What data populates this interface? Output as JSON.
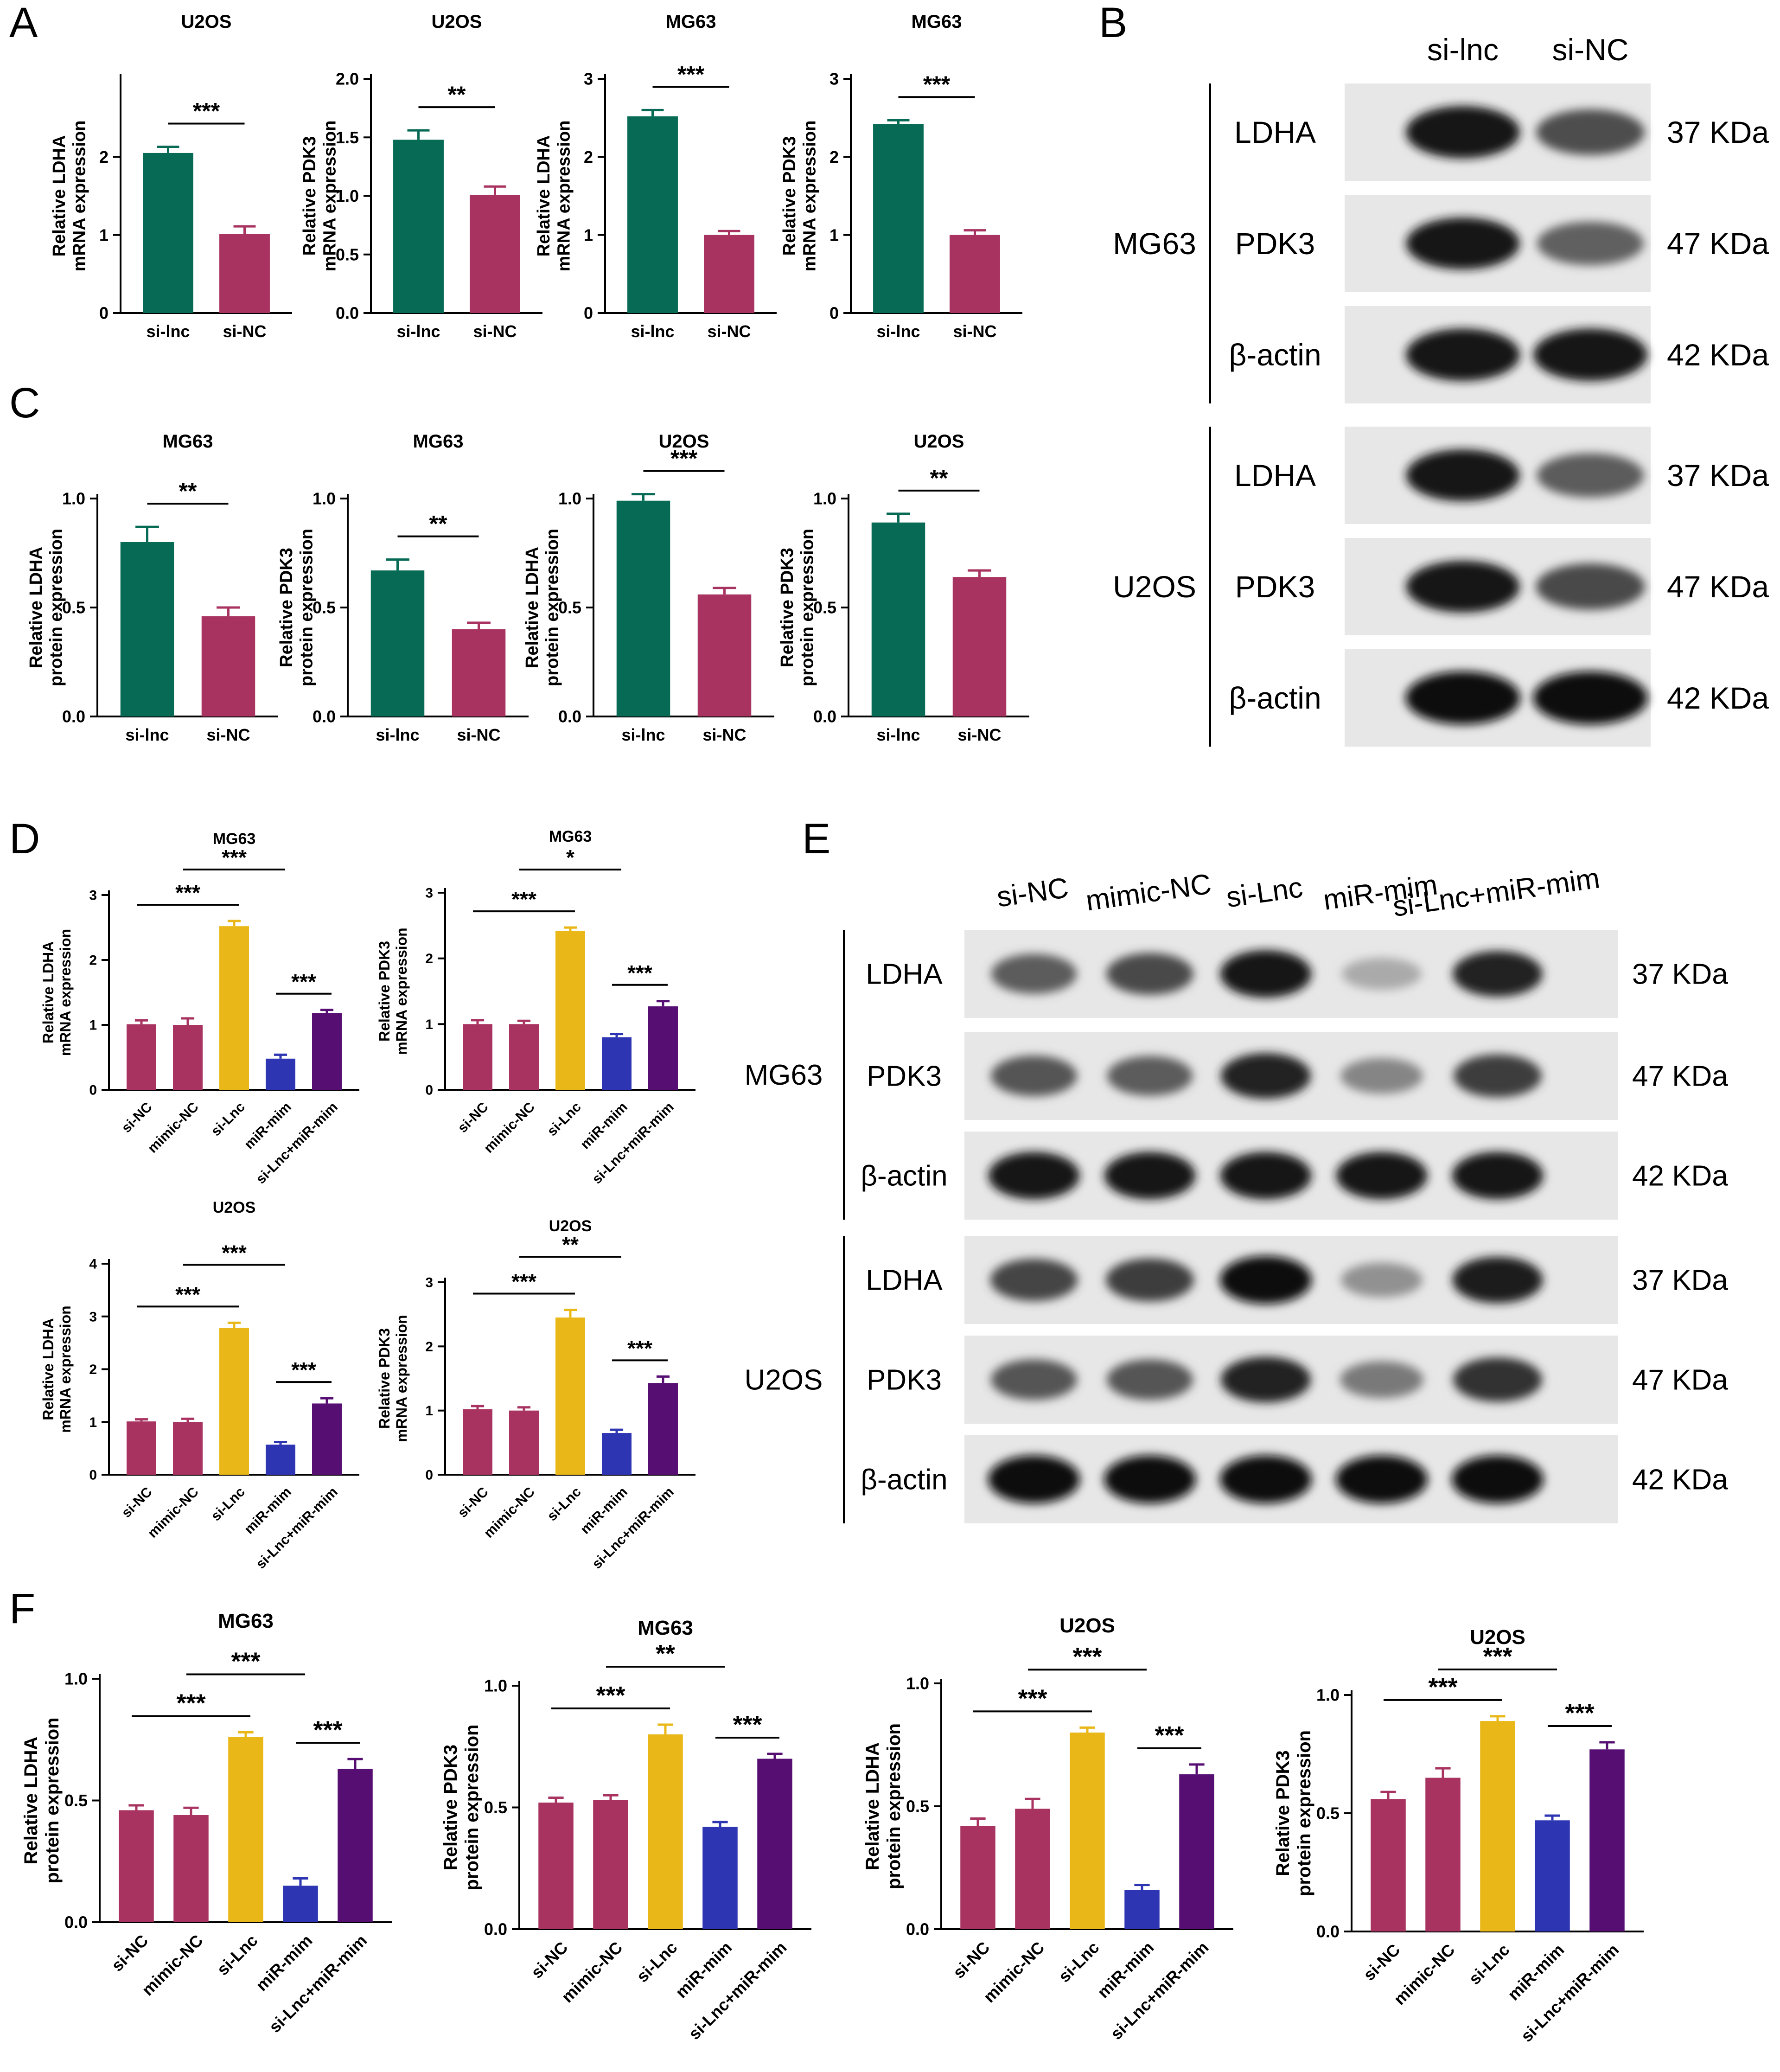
{
  "colors": {
    "si-lnc": "#066a55",
    "si-NC": "#a83360",
    "mimic-NC": "#a83360",
    "si-Lnc": "#e9b818",
    "miR-mim": "#2e35b2",
    "si-Lnc+miR-mim": "#560e73"
  },
  "panel_letters": [
    "A",
    "B",
    "C",
    "D",
    "E",
    "F"
  ],
  "chart_data": [
    {
      "id": "A1",
      "panel": "A",
      "type": "bar",
      "title": "U2OS",
      "ylabel": [
        "Relative LDHA",
        "mRNA expression"
      ],
      "categories": [
        "si-lnc",
        "si-NC"
      ],
      "values": [
        2.05,
        1.01
      ],
      "errors": [
        0.08,
        0.1
      ],
      "ylim": [
        0,
        3
      ],
      "yticks": [
        "0",
        "1",
        "2"
      ],
      "significance": [
        {
          "from": 0,
          "to": 1,
          "label": "***"
        }
      ]
    },
    {
      "id": "A2",
      "panel": "A",
      "type": "bar",
      "title": "U2OS",
      "ylabel": [
        "Relative PDK3",
        "mRNA expression"
      ],
      "categories": [
        "si-lnc",
        "si-NC"
      ],
      "values": [
        1.48,
        1.01
      ],
      "errors": [
        0.08,
        0.07
      ],
      "ylim": [
        0,
        2.0
      ],
      "yticks": [
        "0.0",
        "0.5",
        "1.0",
        "1.5",
        "2.0"
      ],
      "significance": [
        {
          "from": 0,
          "to": 1,
          "label": "**"
        }
      ]
    },
    {
      "id": "A3",
      "panel": "A",
      "type": "bar",
      "title": "MG63",
      "ylabel": [
        "Relative LDHA",
        "mRNA expression"
      ],
      "categories": [
        "si-lnc",
        "si-NC"
      ],
      "values": [
        2.52,
        1.0
      ],
      "errors": [
        0.08,
        0.05
      ],
      "ylim": [
        0,
        3
      ],
      "yticks": [
        "0",
        "1",
        "2",
        "3"
      ],
      "significance": [
        {
          "from": 0,
          "to": 1,
          "label": "***"
        }
      ]
    },
    {
      "id": "A4",
      "panel": "A",
      "type": "bar",
      "title": "MG63",
      "ylabel": [
        "Relative PDK3",
        "mRNA expression"
      ],
      "categories": [
        "si-lnc",
        "si-NC"
      ],
      "values": [
        2.42,
        1.0
      ],
      "errors": [
        0.05,
        0.06
      ],
      "ylim": [
        0,
        3
      ],
      "yticks": [
        "0",
        "1",
        "2",
        "3"
      ],
      "significance": [
        {
          "from": 0,
          "to": 1,
          "label": "***"
        }
      ]
    },
    {
      "id": "C1",
      "panel": "C",
      "type": "bar",
      "title": "MG63",
      "ylabel": [
        "Relative LDHA",
        "protein expression"
      ],
      "categories": [
        "si-lnc",
        "si-NC"
      ],
      "values": [
        0.8,
        0.46
      ],
      "errors": [
        0.07,
        0.04
      ],
      "ylim": [
        0,
        1.0
      ],
      "yticks": [
        "0.0",
        "0.5",
        "1.0"
      ],
      "significance": [
        {
          "from": 0,
          "to": 1,
          "label": "**"
        }
      ]
    },
    {
      "id": "C2",
      "panel": "C",
      "type": "bar",
      "title": "MG63",
      "ylabel": [
        "Relative PDK3",
        "protein expression"
      ],
      "categories": [
        "si-lnc",
        "si-NC"
      ],
      "values": [
        0.67,
        0.4
      ],
      "errors": [
        0.05,
        0.03
      ],
      "ylim": [
        0,
        1.0
      ],
      "yticks": [
        "0.0",
        "0.5",
        "1.0"
      ],
      "significance": [
        {
          "from": 0,
          "to": 1,
          "label": "**"
        }
      ]
    },
    {
      "id": "C3",
      "panel": "C",
      "type": "bar",
      "title": "U2OS",
      "ylabel": [
        "Relative LDHA",
        "protein expression"
      ],
      "categories": [
        "si-lnc",
        "si-NC"
      ],
      "values": [
        0.99,
        0.56
      ],
      "errors": [
        0.03,
        0.03
      ],
      "ylim": [
        0,
        1.0
      ],
      "yticks": [
        "0.0",
        "0.5",
        "1.0"
      ],
      "significance": [
        {
          "from": 0,
          "to": 1,
          "label": "***"
        }
      ]
    },
    {
      "id": "C4",
      "panel": "C",
      "type": "bar",
      "title": "U2OS",
      "ylabel": [
        "Relative PDK3",
        "protein expression"
      ],
      "categories": [
        "si-lnc",
        "si-NC"
      ],
      "values": [
        0.89,
        0.64
      ],
      "errors": [
        0.04,
        0.03
      ],
      "ylim": [
        0,
        1.0
      ],
      "yticks": [
        "0.0",
        "0.5",
        "1.0"
      ],
      "significance": [
        {
          "from": 0,
          "to": 1,
          "label": "**"
        }
      ]
    },
    {
      "id": "D1",
      "panel": "D",
      "type": "bar",
      "title": "MG63",
      "ylabel": [
        "Relative LDHA",
        "mRNA expression"
      ],
      "categories": [
        "si-NC",
        "mimic-NC",
        "si-Lnc",
        "miR-mim",
        "si-Lnc+miR-mim"
      ],
      "values": [
        1.01,
        1.0,
        2.52,
        0.48,
        1.18
      ],
      "errors": [
        0.06,
        0.1,
        0.08,
        0.06,
        0.05
      ],
      "ylim": [
        0,
        3
      ],
      "yticks": [
        "0",
        "1",
        "2",
        "3"
      ],
      "significance": [
        {
          "from": 0,
          "to": 2,
          "label": "***",
          "level": 0
        },
        {
          "from": 1,
          "to": 3,
          "label": "***",
          "level": 1
        },
        {
          "from": 3,
          "to": 4,
          "label": "***",
          "level": 0
        }
      ]
    },
    {
      "id": "D2",
      "panel": "D",
      "type": "bar",
      "title": "MG63",
      "ylabel": [
        "Relative PDK3",
        "mRNA expression"
      ],
      "categories": [
        "si-NC",
        "mimic-NC",
        "si-Lnc",
        "miR-mim",
        "si-Lnc+miR-mim"
      ],
      "values": [
        1.0,
        1.0,
        2.42,
        0.8,
        1.27
      ],
      "errors": [
        0.06,
        0.05,
        0.05,
        0.05,
        0.08
      ],
      "ylim": [
        0,
        3
      ],
      "yticks": [
        "0",
        "1",
        "2",
        "3"
      ],
      "significance": [
        {
          "from": 0,
          "to": 2,
          "label": "***",
          "level": 0
        },
        {
          "from": 1,
          "to": 3,
          "label": "*",
          "level": 1
        },
        {
          "from": 3,
          "to": 4,
          "label": "***",
          "level": 0
        }
      ]
    },
    {
      "id": "D3",
      "panel": "D",
      "type": "bar",
      "title": "U2OS",
      "ylabel": [
        "Relative LDHA",
        "mRNA expression"
      ],
      "categories": [
        "si-NC",
        "mimic-NC",
        "si-Lnc",
        "miR-mim",
        "si-Lnc+miR-mim"
      ],
      "values": [
        1.01,
        1.0,
        2.78,
        0.57,
        1.35
      ],
      "errors": [
        0.04,
        0.06,
        0.1,
        0.05,
        0.1
      ],
      "ylim": [
        0,
        4
      ],
      "yticks": [
        "0",
        "1",
        "2",
        "3",
        "4"
      ],
      "significance": [
        {
          "from": 0,
          "to": 2,
          "label": "***",
          "level": 0
        },
        {
          "from": 1,
          "to": 3,
          "label": "***",
          "level": 1
        },
        {
          "from": 3,
          "to": 4,
          "label": "***",
          "level": 0
        }
      ]
    },
    {
      "id": "D4",
      "panel": "D",
      "type": "bar",
      "title": "U2OS",
      "ylabel": [
        "Relative PDK3",
        "mRNA expression"
      ],
      "categories": [
        "si-NC",
        "mimic-NC",
        "si-Lnc",
        "miR-mim",
        "si-Lnc+miR-mim"
      ],
      "values": [
        1.02,
        1.0,
        2.45,
        0.65,
        1.43
      ],
      "errors": [
        0.05,
        0.05,
        0.12,
        0.05,
        0.1
      ],
      "ylim": [
        0,
        3
      ],
      "yticks": [
        "0",
        "1",
        "2",
        "3"
      ],
      "significance": [
        {
          "from": 0,
          "to": 2,
          "label": "***",
          "level": 0
        },
        {
          "from": 1,
          "to": 3,
          "label": "**",
          "level": 1
        },
        {
          "from": 3,
          "to": 4,
          "label": "***",
          "level": 0
        }
      ]
    },
    {
      "id": "F1",
      "panel": "F",
      "type": "bar",
      "title": "MG63",
      "ylabel": [
        "Relative LDHA",
        "protein expression"
      ],
      "categories": [
        "si-NC",
        "mimic-NC",
        "si-Lnc",
        "miR-mim",
        "si-Lnc+miR-mim"
      ],
      "values": [
        0.46,
        0.44,
        0.76,
        0.15,
        0.63
      ],
      "errors": [
        0.02,
        0.03,
        0.02,
        0.03,
        0.04
      ],
      "ylim": [
        0,
        1.0
      ],
      "yticks": [
        "0.0",
        "0.5",
        "1.0"
      ],
      "significance": [
        {
          "from": 0,
          "to": 2,
          "label": "***",
          "level": 0
        },
        {
          "from": 1,
          "to": 3,
          "label": "***",
          "level": 1
        },
        {
          "from": 3,
          "to": 4,
          "label": "***",
          "level": 0
        }
      ]
    },
    {
      "id": "F2",
      "panel": "F",
      "type": "bar",
      "title": "MG63",
      "ylabel": [
        "Relative PDK3",
        "protein expression"
      ],
      "categories": [
        "si-NC",
        "mimic-NC",
        "si-Lnc",
        "miR-mim",
        "si-Lnc+miR-mim"
      ],
      "values": [
        0.52,
        0.53,
        0.8,
        0.42,
        0.7
      ],
      "errors": [
        0.02,
        0.02,
        0.04,
        0.02,
        0.02
      ],
      "ylim": [
        0,
        1.0
      ],
      "yticks": [
        "0.0",
        "0.5",
        "1.0"
      ],
      "significance": [
        {
          "from": 0,
          "to": 2,
          "label": "***",
          "level": 0
        },
        {
          "from": 1,
          "to": 3,
          "label": "**",
          "level": 1
        },
        {
          "from": 3,
          "to": 4,
          "label": "***",
          "level": 0
        }
      ]
    },
    {
      "id": "F3",
      "panel": "F",
      "type": "bar",
      "title": "U2OS",
      "ylabel": [
        "Relative LDHA",
        "protein expression"
      ],
      "categories": [
        "si-NC",
        "mimic-NC",
        "si-Lnc",
        "miR-mim",
        "si-Lnc+miR-mim"
      ],
      "values": [
        0.42,
        0.49,
        0.8,
        0.16,
        0.63
      ],
      "errors": [
        0.03,
        0.04,
        0.02,
        0.02,
        0.04
      ],
      "ylim": [
        0,
        1.0
      ],
      "yticks": [
        "0.0",
        "0.5",
        "1.0"
      ],
      "significance": [
        {
          "from": 0,
          "to": 2,
          "label": "***",
          "level": 0
        },
        {
          "from": 1,
          "to": 3,
          "label": "***",
          "level": 1
        },
        {
          "from": 3,
          "to": 4,
          "label": "***",
          "level": 0
        }
      ]
    },
    {
      "id": "F4",
      "panel": "F",
      "type": "bar",
      "title": "U2OS",
      "ylabel": [
        "Relative PDK3",
        "protein expression"
      ],
      "categories": [
        "si-NC",
        "mimic-NC",
        "si-Lnc",
        "miR-mim",
        "si-Lnc+miR-mim"
      ],
      "values": [
        0.56,
        0.65,
        0.89,
        0.47,
        0.77
      ],
      "errors": [
        0.03,
        0.04,
        0.02,
        0.02,
        0.03
      ],
      "ylim": [
        0,
        1.0
      ],
      "yticks": [
        "0.0",
        "0.5",
        "1.0"
      ],
      "significance": [
        {
          "from": 0,
          "to": 2,
          "label": "***",
          "level": 0
        },
        {
          "from": 1,
          "to": 3,
          "label": "***",
          "level": 1
        },
        {
          "from": 3,
          "to": 4,
          "label": "***",
          "level": 0
        }
      ]
    }
  ],
  "blots": {
    "B": {
      "lanes": [
        "si-lnc",
        "si-NC"
      ],
      "groups": [
        {
          "cell": "MG63",
          "rows": [
            {
              "protein": "LDHA",
              "size": "37 KDa",
              "intensity": [
                0.92,
                0.68
              ]
            },
            {
              "protein": "PDK3",
              "size": "47 KDa",
              "intensity": [
                0.9,
                0.6
              ]
            },
            {
              "protein": "β-actin",
              "size": "42 KDa",
              "intensity": [
                0.92,
                0.92
              ]
            }
          ]
        },
        {
          "cell": "U2OS",
          "rows": [
            {
              "protein": "LDHA",
              "size": "37 KDa",
              "intensity": [
                0.9,
                0.62
              ]
            },
            {
              "protein": "PDK3",
              "size": "47 KDa",
              "intensity": [
                0.9,
                0.7
              ]
            },
            {
              "protein": "β-actin",
              "size": "42 KDa",
              "intensity": [
                0.95,
                0.95
              ]
            }
          ]
        }
      ]
    },
    "E": {
      "lanes": [
        "si-NC",
        "mimic-NC",
        "si-Lnc",
        "miR-mim",
        "si-Lnc+miR-mim"
      ],
      "groups": [
        {
          "cell": "MG63",
          "rows": [
            {
              "protein": "LDHA",
              "size": "37 KDa",
              "intensity": [
                0.62,
                0.7,
                0.92,
                0.3,
                0.85
              ]
            },
            {
              "protein": "PDK3",
              "size": "47 KDa",
              "intensity": [
                0.65,
                0.62,
                0.85,
                0.45,
                0.75
              ]
            },
            {
              "protein": "β-actin",
              "size": "42 KDa",
              "intensity": [
                0.92,
                0.92,
                0.92,
                0.92,
                0.92
              ]
            }
          ]
        },
        {
          "cell": "U2OS",
          "rows": [
            {
              "protein": "LDHA",
              "size": "37 KDa",
              "intensity": [
                0.72,
                0.75,
                0.95,
                0.4,
                0.88
              ]
            },
            {
              "protein": "PDK3",
              "size": "47 KDa",
              "intensity": [
                0.65,
                0.65,
                0.85,
                0.5,
                0.8
              ]
            },
            {
              "protein": "β-actin",
              "size": "42 KDa",
              "intensity": [
                0.95,
                0.95,
                0.95,
                0.95,
                0.95
              ]
            }
          ]
        }
      ]
    }
  }
}
